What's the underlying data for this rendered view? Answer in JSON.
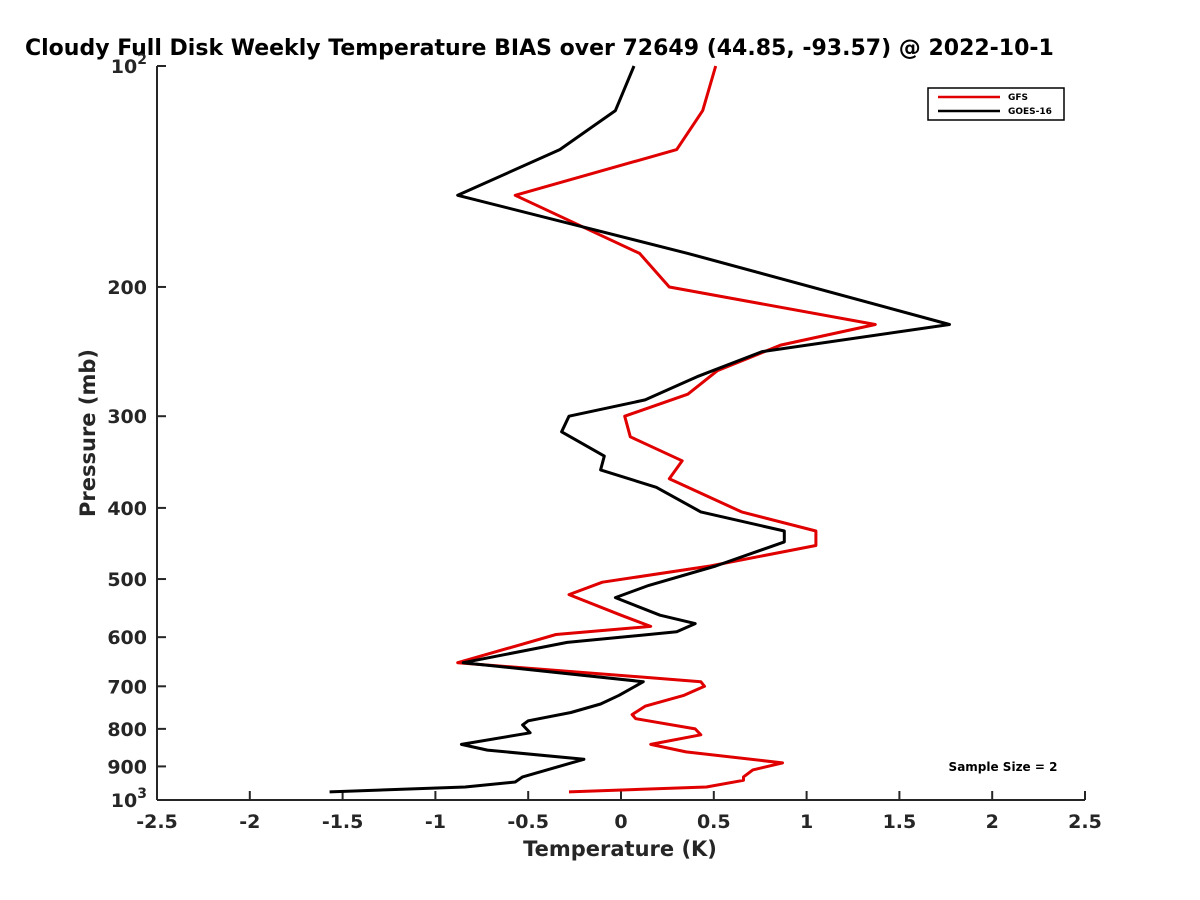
{
  "chart_data": {
    "type": "line",
    "title": "Cloudy Full Disk Weekly Temperature BIAS over 72649 (44.85, -93.57) @ 2022-10-1",
    "xlabel": "Temperature (K)",
    "ylabel": "Pressure (mb)",
    "xlim": [
      -2.5,
      2.5
    ],
    "ylim": [
      100,
      1000
    ],
    "y_scale": "log",
    "y_reversed": true,
    "grid": false,
    "legend_position": "top-right",
    "x_ticks": [
      "-2.5",
      "-2",
      "-1.5",
      "-1",
      "-0.5",
      "0",
      "0.5",
      "1",
      "1.5",
      "2",
      "2.5"
    ],
    "y_ticks": [
      {
        "value": 100,
        "base": "10",
        "exp": "2"
      },
      {
        "value": 200,
        "label": "200"
      },
      {
        "value": 300,
        "label": "300"
      },
      {
        "value": 400,
        "label": "400"
      },
      {
        "value": 500,
        "label": "500"
      },
      {
        "value": 600,
        "label": "600"
      },
      {
        "value": 700,
        "label": "700"
      },
      {
        "value": 800,
        "label": "800"
      },
      {
        "value": 900,
        "label": "900"
      },
      {
        "value": 1000,
        "base": "10",
        "exp": "3"
      }
    ],
    "series": [
      {
        "name": "GFS",
        "color": "#e00000",
        "points": [
          [
            0.51,
            100
          ],
          [
            0.44,
            115
          ],
          [
            0.3,
            130
          ],
          [
            -0.57,
            150
          ],
          [
            0.1,
            180
          ],
          [
            0.26,
            200
          ],
          [
            1.37,
            225
          ],
          [
            0.86,
            240
          ],
          [
            0.52,
            260
          ],
          [
            0.36,
            280
          ],
          [
            0.02,
            300
          ],
          [
            0.05,
            320
          ],
          [
            0.33,
            345
          ],
          [
            0.26,
            365
          ],
          [
            0.65,
            405
          ],
          [
            1.05,
            430
          ],
          [
            1.05,
            450
          ],
          [
            0.48,
            480
          ],
          [
            -0.1,
            505
          ],
          [
            -0.28,
            525
          ],
          [
            0.0,
            560
          ],
          [
            0.16,
            580
          ],
          [
            -0.35,
            595
          ],
          [
            -0.88,
            650
          ],
          [
            0.43,
            690
          ],
          [
            0.45,
            700
          ],
          [
            0.34,
            720
          ],
          [
            0.13,
            745
          ],
          [
            0.06,
            765
          ],
          [
            0.08,
            775
          ],
          [
            0.4,
            800
          ],
          [
            0.43,
            815
          ],
          [
            0.16,
            840
          ],
          [
            0.35,
            860
          ],
          [
            0.87,
            890
          ],
          [
            0.71,
            910
          ],
          [
            0.66,
            930
          ],
          [
            0.66,
            940
          ],
          [
            0.46,
            960
          ],
          [
            -0.28,
            975
          ]
        ]
      },
      {
        "name": "GOES-16",
        "color": "#000000",
        "points": [
          [
            0.07,
            100
          ],
          [
            -0.03,
            115
          ],
          [
            -0.33,
            130
          ],
          [
            -0.88,
            150
          ],
          [
            0.36,
            180
          ],
          [
            1.77,
            225
          ],
          [
            0.76,
            245
          ],
          [
            0.41,
            265
          ],
          [
            0.13,
            285
          ],
          [
            -0.28,
            300
          ],
          [
            -0.32,
            315
          ],
          [
            -0.09,
            340
          ],
          [
            -0.11,
            355
          ],
          [
            0.19,
            375
          ],
          [
            0.43,
            405
          ],
          [
            0.88,
            430
          ],
          [
            0.88,
            445
          ],
          [
            0.51,
            480
          ],
          [
            0.15,
            510
          ],
          [
            -0.03,
            530
          ],
          [
            0.21,
            560
          ],
          [
            0.4,
            575
          ],
          [
            0.3,
            590
          ],
          [
            -0.29,
            610
          ],
          [
            -0.85,
            650
          ],
          [
            0.12,
            690
          ],
          [
            -0.01,
            720
          ],
          [
            -0.11,
            740
          ],
          [
            -0.27,
            760
          ],
          [
            -0.5,
            780
          ],
          [
            -0.53,
            790
          ],
          [
            -0.49,
            810
          ],
          [
            -0.86,
            840
          ],
          [
            -0.72,
            855
          ],
          [
            -0.2,
            880
          ],
          [
            -0.53,
            930
          ],
          [
            -0.57,
            945
          ],
          [
            -0.84,
            960
          ],
          [
            -1.57,
            975
          ]
        ]
      }
    ],
    "annotation": "Sample Size = 2"
  }
}
